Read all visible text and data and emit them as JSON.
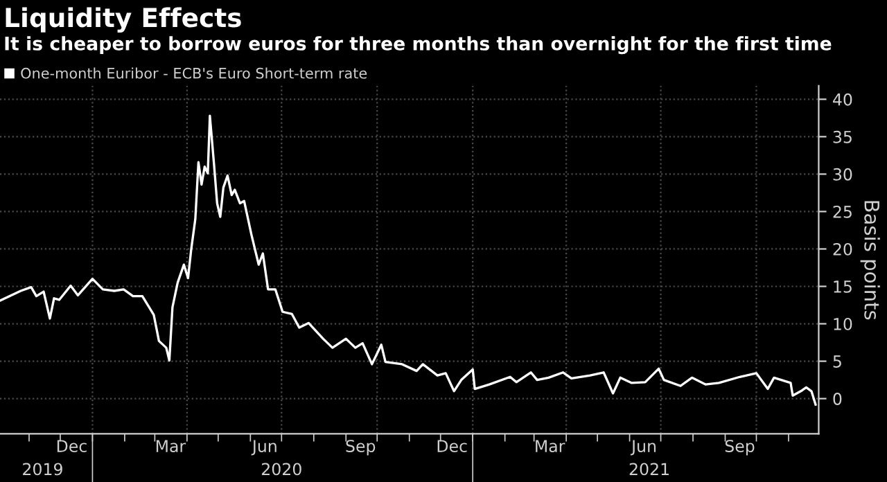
{
  "chart_data": {
    "type": "line",
    "title": "Liquidity Effects",
    "subtitle": "It is cheaper to borrow euros for three months than overnight for the first time",
    "ylabel": "Basis points",
    "x": [
      "2019-10-04",
      "2019-10-24",
      "2019-11-03",
      "2019-11-08",
      "2019-11-15",
      "2019-11-21",
      "2019-11-25",
      "2019-11-30",
      "2019-12-11",
      "2019-12-18",
      "2020-01-01",
      "2020-01-11",
      "2020-01-22",
      "2020-01-31",
      "2020-02-09",
      "2020-02-18",
      "2020-02-29",
      "2020-03-05",
      "2020-03-12",
      "2020-03-15",
      "2020-03-18",
      "2020-03-23",
      "2020-03-29",
      "2020-04-02",
      "2020-04-05",
      "2020-04-09",
      "2020-04-12",
      "2020-04-15",
      "2020-04-18",
      "2020-04-21",
      "2020-04-23",
      "2020-04-27",
      "2020-04-30",
      "2020-05-03",
      "2020-05-06",
      "2020-05-10",
      "2020-05-14",
      "2020-05-17",
      "2020-05-22",
      "2020-05-26",
      "2020-06-02",
      "2020-06-09",
      "2020-06-13",
      "2020-06-18",
      "2020-06-25",
      "2020-07-02",
      "2020-07-11",
      "2020-07-18",
      "2020-07-27",
      "2020-08-10",
      "2020-08-19",
      "2020-09-01",
      "2020-09-10",
      "2020-09-17",
      "2020-09-26",
      "2020-10-05",
      "2020-10-09",
      "2020-10-25",
      "2020-11-08",
      "2020-11-14",
      "2020-11-28",
      "2020-12-06",
      "2020-12-14",
      "2020-12-21",
      "2021-01-01",
      "2021-01-03",
      "2021-01-17",
      "2021-02-06",
      "2021-02-12",
      "2021-02-26",
      "2021-03-04",
      "2021-03-15",
      "2021-03-29",
      "2021-04-06",
      "2021-04-24",
      "2021-05-07",
      "2021-05-16",
      "2021-05-23",
      "2021-06-03",
      "2021-06-16",
      "2021-06-29",
      "2021-07-04",
      "2021-07-20",
      "2021-07-31",
      "2021-08-13",
      "2021-08-26",
      "2021-09-15",
      "2021-10-01",
      "2021-10-12",
      "2021-10-18",
      "2021-11-03",
      "2021-11-05",
      "2021-11-14",
      "2021-11-18",
      "2021-11-23",
      "2021-11-27"
    ],
    "series": [
      {
        "name": "One-month Euribor - ECB's Euro Short-term rate",
        "color": "#ffffff",
        "values": [
          13.1,
          14.4,
          14.9,
          13.7,
          14.3,
          10.7,
          13.4,
          13.2,
          15.1,
          13.8,
          16.0,
          14.6,
          14.4,
          14.6,
          13.7,
          13.7,
          11.2,
          7.7,
          6.8,
          5.1,
          12.2,
          15.5,
          17.9,
          16.1,
          19.9,
          24.0,
          31.6,
          28.6,
          31.0,
          30.1,
          37.8,
          31.3,
          26.1,
          24.3,
          28.2,
          29.8,
          27.2,
          27.9,
          26.1,
          26.4,
          21.9,
          17.9,
          19.4,
          14.6,
          14.6,
          11.6,
          11.3,
          9.5,
          10.1,
          8.0,
          6.8,
          8.0,
          6.8,
          7.4,
          4.6,
          7.2,
          4.9,
          4.6,
          3.7,
          4.6,
          3.1,
          3.4,
          1.0,
          2.5,
          3.9,
          1.3,
          1.9,
          2.9,
          2.2,
          3.5,
          2.5,
          2.8,
          3.5,
          2.7,
          3.1,
          3.5,
          0.7,
          2.8,
          2.1,
          2.2,
          4.0,
          2.5,
          1.7,
          2.8,
          1.9,
          2.1,
          2.9,
          3.4,
          1.3,
          2.8,
          2.1,
          0.4,
          1.1,
          1.5,
          1.0,
          -0.8
        ]
      }
    ],
    "xlim": [
      "2019-10-04",
      "2021-11-30"
    ],
    "xticks": [
      {
        "value": "2019-11-01",
        "label": null
      },
      {
        "value": "2019-12-01",
        "label": null
      },
      {
        "value": "2019-12-12",
        "label": "Dec"
      },
      {
        "value": "2020-01-01",
        "label": null
      },
      {
        "value": "2020-02-01",
        "label": null
      },
      {
        "value": "2020-03-01",
        "label": null
      },
      {
        "value": "2020-03-16",
        "label": "Mar"
      },
      {
        "value": "2020-04-01",
        "label": null
      },
      {
        "value": "2020-05-01",
        "label": null
      },
      {
        "value": "2020-06-01",
        "label": null
      },
      {
        "value": "2020-06-15",
        "label": "Jun"
      },
      {
        "value": "2020-07-01",
        "label": null
      },
      {
        "value": "2020-08-01",
        "label": null
      },
      {
        "value": "2020-09-01",
        "label": null
      },
      {
        "value": "2020-09-15",
        "label": "Sep"
      },
      {
        "value": "2020-10-01",
        "label": null
      },
      {
        "value": "2020-11-01",
        "label": null
      },
      {
        "value": "2020-12-01",
        "label": null
      },
      {
        "value": "2020-12-12",
        "label": "Dec"
      },
      {
        "value": "2021-01-01",
        "label": null
      },
      {
        "value": "2021-02-01",
        "label": null
      },
      {
        "value": "2021-03-01",
        "label": null
      },
      {
        "value": "2021-03-16",
        "label": "Mar"
      },
      {
        "value": "2021-04-01",
        "label": null
      },
      {
        "value": "2021-05-01",
        "label": null
      },
      {
        "value": "2021-06-01",
        "label": null
      },
      {
        "value": "2021-06-15",
        "label": "Jun"
      },
      {
        "value": "2021-07-01",
        "label": null
      },
      {
        "value": "2021-08-01",
        "label": null
      },
      {
        "value": "2021-09-01",
        "label": null
      },
      {
        "value": "2021-09-15",
        "label": "Sep"
      },
      {
        "value": "2021-10-01",
        "label": null
      },
      {
        "value": "2021-11-01",
        "label": null
      }
    ],
    "x2lim": [
      "2019-10-04",
      "2021-11-30"
    ],
    "x2ticks": [
      {
        "value": "2019-11-14",
        "label": "2019"
      },
      {
        "value": "2020-01-01",
        "label": null
      },
      {
        "value": "2020-07-01",
        "label": "2020"
      },
      {
        "value": "2021-01-01",
        "label": null
      },
      {
        "value": "2021-06-20",
        "label": "2021"
      }
    ],
    "ylim": [
      -4.7,
      41.8
    ],
    "yticks": [
      0,
      5,
      10,
      15,
      20,
      25,
      30,
      35,
      40
    ],
    "ref_lines": [
      {
        "axis": "x",
        "value": "2020-01-01",
        "color": "#4a4a4a",
        "line_style": "dotted"
      },
      {
        "axis": "x",
        "value": "2020-04-01",
        "color": "#4a4a4a",
        "line_style": "dotted"
      },
      {
        "axis": "x",
        "value": "2020-07-01",
        "color": "#4a4a4a",
        "line_style": "dotted"
      },
      {
        "axis": "x",
        "value": "2020-10-01",
        "color": "#4a4a4a",
        "line_style": "dotted"
      },
      {
        "axis": "x",
        "value": "2021-01-01",
        "color": "#4a4a4a",
        "line_style": "dotted"
      },
      {
        "axis": "x",
        "value": "2021-04-01",
        "color": "#4a4a4a",
        "line_style": "dotted"
      },
      {
        "axis": "x",
        "value": "2021-07-01",
        "color": "#4a4a4a",
        "line_style": "dotted"
      },
      {
        "axis": "x",
        "value": "2021-10-01",
        "color": "#4a4a4a",
        "line_style": "dotted"
      }
    ],
    "grid": "y",
    "legend": "top left",
    "marker": "none",
    "line_style": "solid"
  }
}
